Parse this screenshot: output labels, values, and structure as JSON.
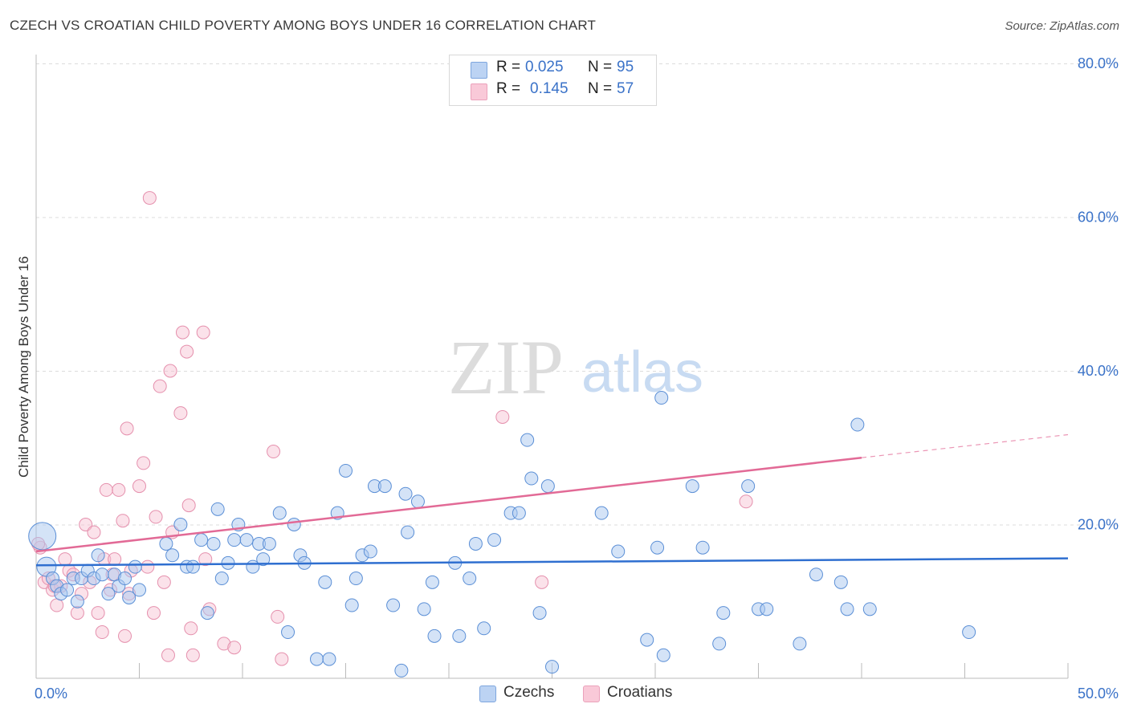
{
  "title": "CZECH VS CROATIAN CHILD POVERTY AMONG BOYS UNDER 16 CORRELATION CHART",
  "source": "Source: ZipAtlas.com",
  "watermark": {
    "zip": "ZIP",
    "atlas": "atlas"
  },
  "legend": {
    "rows": [
      {
        "r_label": "R =",
        "r_value": "0.025",
        "n_label": "N =",
        "n_value": "95"
      },
      {
        "r_label": "R =",
        "r_value": "0.145",
        "n_label": "N =",
        "n_value": "57"
      }
    ]
  },
  "bottom_legend": {
    "czechs": "Czechs",
    "croatians": "Croatians"
  },
  "colors": {
    "czech_fill": "#a9c8f0",
    "czech_stroke": "#5b8fd6",
    "czech_line": "#2f6fd0",
    "croatian_fill": "#f7bfd0",
    "croatian_stroke": "#e590ad",
    "croatian_line": "#e26a96",
    "axis_label": "#3a72c8",
    "grid": "#dcdcdc"
  },
  "chart_data": {
    "type": "scatter",
    "title": "CZECH VS CROATIAN CHILD POVERTY AMONG BOYS UNDER 16 CORRELATION CHART",
    "xlabel": "",
    "ylabel": "Child Poverty Among Boys Under 16",
    "xlim": [
      0,
      50
    ],
    "ylim": [
      0,
      80
    ],
    "x_tick_labels": [
      "0.0%",
      "50.0%"
    ],
    "y_ticks": [
      20,
      40,
      60,
      80
    ],
    "y_tick_labels": [
      "20.0%",
      "40.0%",
      "60.0%",
      "80.0%"
    ],
    "grid": true,
    "legend_position": "top-center",
    "series": [
      {
        "name": "Czechs",
        "r": 0.025,
        "n": 95,
        "trend": {
          "x": [
            0,
            50
          ],
          "y": [
            14.7,
            15.6
          ]
        },
        "points": [
          [
            0.3,
            18.5
          ],
          [
            0.5,
            14.5
          ],
          [
            0.8,
            13.0
          ],
          [
            1.0,
            12.0
          ],
          [
            1.2,
            11.0
          ],
          [
            1.5,
            11.5
          ],
          [
            1.8,
            13.0
          ],
          [
            2.0,
            10.0
          ],
          [
            2.2,
            13.0
          ],
          [
            2.5,
            14.0
          ],
          [
            2.8,
            13.0
          ],
          [
            3.0,
            16.0
          ],
          [
            3.2,
            13.5
          ],
          [
            3.5,
            11.0
          ],
          [
            3.8,
            13.5
          ],
          [
            4.0,
            12.0
          ],
          [
            4.3,
            13.0
          ],
          [
            4.5,
            10.5
          ],
          [
            4.8,
            14.5
          ],
          [
            5.0,
            11.5
          ],
          [
            6.3,
            17.5
          ],
          [
            6.6,
            16.0
          ],
          [
            7.0,
            20.0
          ],
          [
            7.3,
            14.5
          ],
          [
            7.6,
            14.5
          ],
          [
            8.0,
            18.0
          ],
          [
            8.3,
            8.5
          ],
          [
            8.6,
            17.5
          ],
          [
            8.8,
            22.0
          ],
          [
            9.0,
            13.0
          ],
          [
            9.3,
            15.0
          ],
          [
            9.6,
            18.0
          ],
          [
            9.8,
            20.0
          ],
          [
            10.2,
            18.0
          ],
          [
            10.5,
            14.5
          ],
          [
            10.8,
            17.5
          ],
          [
            11.0,
            15.5
          ],
          [
            11.3,
            17.5
          ],
          [
            11.8,
            21.5
          ],
          [
            12.2,
            6.0
          ],
          [
            12.5,
            20.0
          ],
          [
            12.8,
            16.0
          ],
          [
            13.0,
            15.0
          ],
          [
            13.6,
            2.5
          ],
          [
            14.0,
            12.5
          ],
          [
            14.2,
            2.5
          ],
          [
            14.6,
            21.5
          ],
          [
            15.0,
            27.0
          ],
          [
            15.3,
            9.5
          ],
          [
            15.5,
            13.0
          ],
          [
            15.8,
            16.0
          ],
          [
            16.2,
            16.5
          ],
          [
            16.4,
            25.0
          ],
          [
            16.9,
            25.0
          ],
          [
            17.3,
            9.5
          ],
          [
            17.7,
            1.0
          ],
          [
            17.9,
            24.0
          ],
          [
            18.0,
            19.0
          ],
          [
            18.5,
            23.0
          ],
          [
            18.8,
            9.0
          ],
          [
            19.2,
            12.5
          ],
          [
            19.3,
            5.5
          ],
          [
            20.3,
            15.0
          ],
          [
            20.5,
            5.5
          ],
          [
            21.0,
            13.0
          ],
          [
            21.3,
            17.5
          ],
          [
            21.7,
            6.5
          ],
          [
            22.2,
            18.0
          ],
          [
            23.0,
            21.5
          ],
          [
            23.4,
            21.5
          ],
          [
            23.8,
            31.0
          ],
          [
            24.0,
            26.0
          ],
          [
            24.4,
            8.5
          ],
          [
            24.8,
            25.0
          ],
          [
            25.0,
            1.5
          ],
          [
            27.4,
            21.5
          ],
          [
            28.2,
            16.5
          ],
          [
            29.6,
            5.0
          ],
          [
            30.1,
            17.0
          ],
          [
            30.3,
            36.5
          ],
          [
            30.4,
            3.0
          ],
          [
            31.8,
            25.0
          ],
          [
            32.3,
            17.0
          ],
          [
            33.1,
            4.5
          ],
          [
            33.3,
            8.5
          ],
          [
            34.5,
            25.0
          ],
          [
            35.0,
            9.0
          ],
          [
            35.4,
            9.0
          ],
          [
            37.0,
            4.5
          ],
          [
            37.8,
            13.5
          ],
          [
            39.0,
            12.5
          ],
          [
            39.3,
            9.0
          ],
          [
            39.8,
            33.0
          ],
          [
            40.4,
            9.0
          ],
          [
            45.2,
            6.0
          ]
        ]
      },
      {
        "name": "Croatians",
        "r": 0.145,
        "n": 57,
        "trend": {
          "x": [
            0,
            40
          ],
          "y": [
            16.5,
            28.7
          ]
        },
        "trend_dashed": {
          "x": [
            40,
            50
          ],
          "y": [
            28.7,
            31.7
          ]
        },
        "points": [
          [
            0.2,
            17.0
          ],
          [
            0.4,
            12.5
          ],
          [
            0.6,
            13.0
          ],
          [
            0.8,
            11.5
          ],
          [
            1.0,
            9.5
          ],
          [
            1.2,
            12.0
          ],
          [
            1.4,
            15.5
          ],
          [
            1.6,
            14.0
          ],
          [
            1.8,
            13.5
          ],
          [
            2.0,
            8.5
          ],
          [
            2.2,
            11.0
          ],
          [
            2.4,
            20.0
          ],
          [
            2.6,
            12.5
          ],
          [
            2.8,
            19.0
          ],
          [
            3.0,
            8.5
          ],
          [
            3.2,
            6.0
          ],
          [
            3.3,
            15.5
          ],
          [
            3.4,
            24.5
          ],
          [
            3.6,
            11.5
          ],
          [
            3.8,
            15.5
          ],
          [
            4.0,
            24.5
          ],
          [
            4.2,
            20.5
          ],
          [
            4.3,
            5.5
          ],
          [
            4.4,
            32.5
          ],
          [
            4.5,
            11.0
          ],
          [
            4.6,
            14.0
          ],
          [
            5.0,
            25.0
          ],
          [
            5.2,
            28.0
          ],
          [
            5.4,
            14.5
          ],
          [
            5.5,
            62.5
          ],
          [
            5.7,
            8.5
          ],
          [
            5.8,
            21.0
          ],
          [
            6.0,
            38.0
          ],
          [
            6.2,
            12.5
          ],
          [
            6.4,
            3.0
          ],
          [
            6.5,
            40.0
          ],
          [
            6.6,
            19.0
          ],
          [
            7.0,
            34.5
          ],
          [
            7.1,
            45.0
          ],
          [
            7.3,
            42.5
          ],
          [
            7.4,
            22.5
          ],
          [
            7.5,
            6.5
          ],
          [
            7.6,
            3.0
          ],
          [
            8.1,
            45.0
          ],
          [
            8.2,
            15.5
          ],
          [
            8.4,
            9.0
          ],
          [
            9.1,
            4.5
          ],
          [
            9.6,
            4.0
          ],
          [
            11.5,
            29.5
          ],
          [
            11.7,
            8.0
          ],
          [
            11.9,
            2.5
          ],
          [
            22.6,
            34.0
          ],
          [
            24.5,
            12.5
          ],
          [
            34.4,
            23.0
          ],
          [
            0.1,
            17.5
          ],
          [
            0.9,
            12.0
          ],
          [
            3.7,
            13.5
          ]
        ]
      }
    ]
  }
}
